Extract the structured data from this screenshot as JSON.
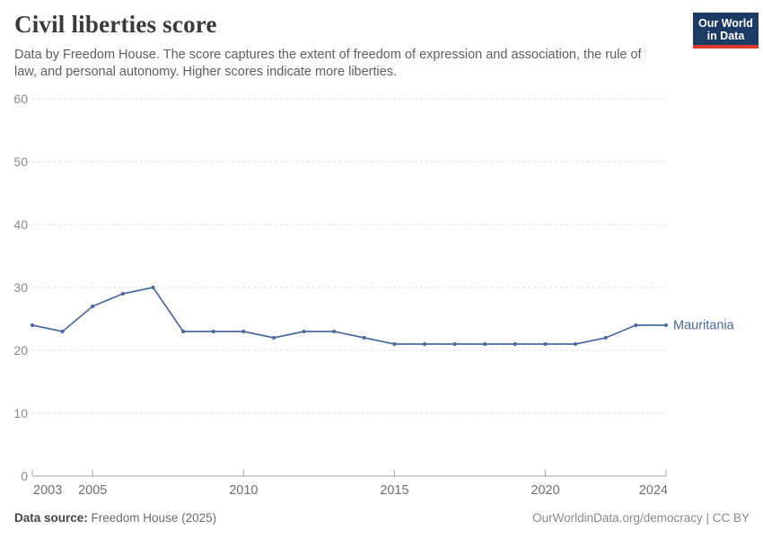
{
  "logo": {
    "line1": "Our World",
    "line2": "in Data",
    "bg_color": "#1b3a64",
    "accent_color": "#dc3b2e"
  },
  "chart_data": {
    "type": "line",
    "title": "Civil liberties score",
    "subtitle": "Data by Freedom House. The score captures the extent of freedom of expression and association, the rule of law, and personal autonomy. Higher scores indicate more liberties.",
    "entity": "Mauritania",
    "x": [
      2003,
      2004,
      2005,
      2006,
      2007,
      2008,
      2009,
      2010,
      2011,
      2012,
      2013,
      2014,
      2015,
      2016,
      2017,
      2018,
      2019,
      2020,
      2021,
      2022,
      2023,
      2024
    ],
    "values": [
      24,
      23,
      27,
      29,
      30,
      23,
      23,
      23,
      22,
      23,
      23,
      22,
      21,
      21,
      21,
      21,
      21,
      21,
      21,
      22,
      24,
      24
    ],
    "xlabel": "",
    "ylabel": "",
    "xlim": [
      2003,
      2024
    ],
    "ylim": [
      0,
      60
    ],
    "yticks": [
      0,
      10,
      20,
      30,
      40,
      50,
      60
    ],
    "xticks": [
      2003,
      2005,
      2010,
      2015,
      2020,
      2024
    ],
    "grid": "horizontal-dashed",
    "legend_position": "end-of-line",
    "line_color": "#4C6A9C",
    "axis_color": "#a5a5a5",
    "grid_color": "#dedede"
  },
  "footer": {
    "source_label": "Data source:",
    "source_value": " Freedom House (2025)",
    "credit": "OurWorldinData.org/democracy | CC BY"
  }
}
